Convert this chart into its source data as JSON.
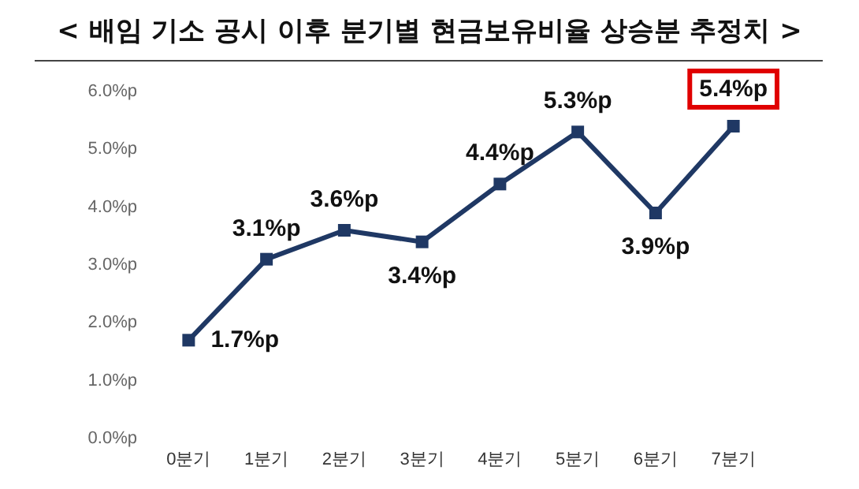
{
  "chart_data": {
    "type": "line",
    "title": "< 배임 기소 공시 이후 분기별 현금보유비율 상승분 추정치 >",
    "categories": [
      "0분기",
      "1분기",
      "2분기",
      "3분기",
      "4분기",
      "5분기",
      "6분기",
      "7분기"
    ],
    "series": [
      {
        "color": "#1f3864",
        "values": [
          1.7,
          3.1,
          3.6,
          3.4,
          4.4,
          5.3,
          3.9,
          5.4
        ],
        "value_labels": [
          "1.7%p",
          "3.1%p",
          "3.6%p",
          "3.4%p",
          "4.4%p",
          "5.3%p",
          "3.9%p",
          "5.4%p"
        ]
      }
    ],
    "ylim": [
      0,
      6
    ],
    "yticks": [
      {
        "value": 0,
        "label": "0.0%p"
      },
      {
        "value": 1,
        "label": "1.0%p"
      },
      {
        "value": 2,
        "label": "2.0%p"
      },
      {
        "value": 3,
        "label": "3.0%p"
      },
      {
        "value": 4,
        "label": "4.0%p"
      },
      {
        "value": 5,
        "label": "5.0%p"
      },
      {
        "value": 6,
        "label": "6.0%p"
      }
    ],
    "grid": false,
    "marker": "square",
    "line_style": "solid"
  }
}
